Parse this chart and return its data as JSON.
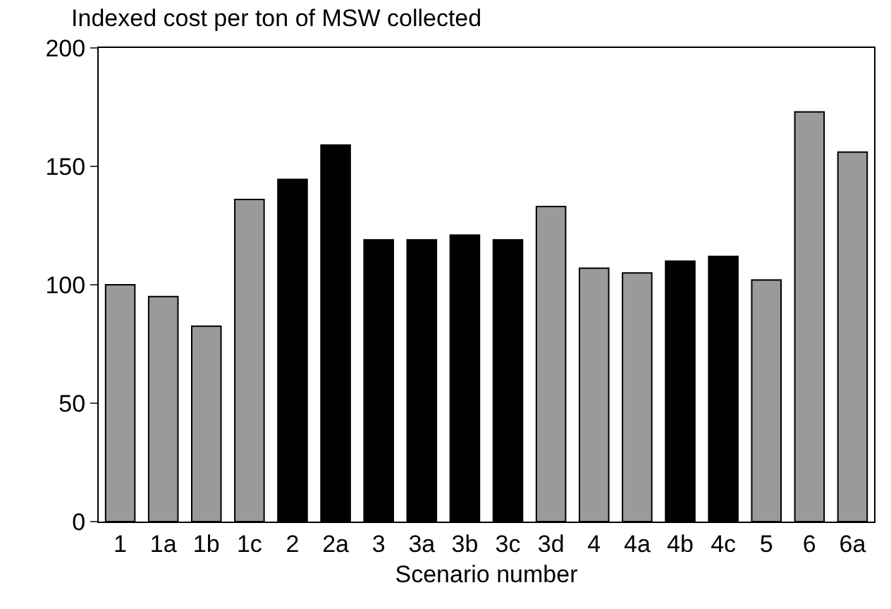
{
  "chart_data": {
    "type": "bar",
    "title": "Indexed cost per ton of MSW collected",
    "xlabel": "Scenario number",
    "categories": [
      "1",
      "1a",
      "1b",
      "1c",
      "2",
      "2a",
      "3",
      "3a",
      "3b",
      "3c",
      "3d",
      "4",
      "4a",
      "4b",
      "4c",
      "5",
      "6",
      "6a"
    ],
    "values": [
      100,
      95,
      82.5,
      136,
      144.5,
      159,
      119,
      119,
      121,
      119,
      133,
      107,
      105,
      110,
      112,
      102,
      173,
      156
    ],
    "colors": [
      "#9a9a9a",
      "#9a9a9a",
      "#9a9a9a",
      "#9a9a9a",
      "#000000",
      "#000000",
      "#000000",
      "#000000",
      "#000000",
      "#000000",
      "#9a9a9a",
      "#9a9a9a",
      "#9a9a9a",
      "#000000",
      "#000000",
      "#9a9a9a",
      "#9a9a9a",
      "#9a9a9a"
    ],
    "ylim": [
      0,
      200
    ],
    "yticks": [
      0,
      50,
      100,
      150,
      200
    ],
    "grid": false
  }
}
